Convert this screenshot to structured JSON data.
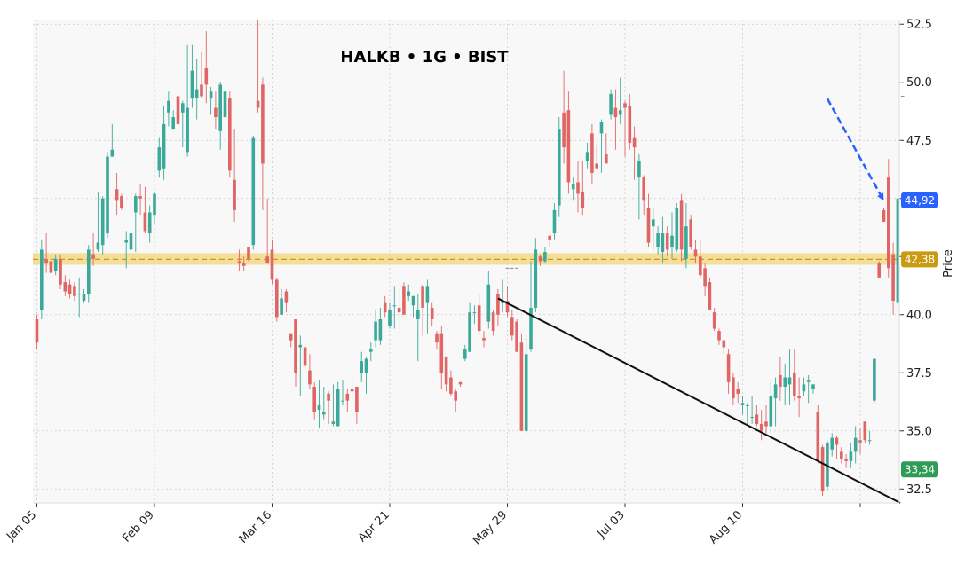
{
  "chart_data": {
    "type": "candlestick",
    "title": "HALKB • 1G • BIST",
    "ylabel": "Price",
    "xlabel": "",
    "ylim": [
      31.9,
      52.7
    ],
    "yticks": [
      32.5,
      35.0,
      37.5,
      40.0,
      42.5,
      45.0,
      47.5,
      50.0,
      52.5
    ],
    "ytick_labels": [
      "32.5",
      "35.0",
      "37.5",
      "40.0",
      "42.5",
      "45.0",
      "47.5",
      "50.0",
      "52.5"
    ],
    "xtick_labels": [
      "Jan 05",
      "Feb 09",
      "Mar 16",
      "Apr 21",
      "May 29",
      "Jul 03",
      "Aug 10",
      ""
    ],
    "xtick_index": [
      0,
      25,
      50,
      75,
      100,
      125,
      150,
      175
    ],
    "grid": true,
    "candles": [
      [
        39.8,
        38.8,
        40.0,
        38.5
      ],
      [
        40.2,
        42.8,
        43.2,
        39.8
      ],
      [
        42.4,
        42.2,
        43.5,
        41.8
      ],
      [
        42.3,
        41.8,
        42.6,
        41.6
      ],
      [
        41.9,
        42.4,
        42.6,
        41.7
      ],
      [
        42.4,
        41.3,
        42.6,
        41.1
      ],
      [
        41.4,
        41.0,
        41.7,
        40.8
      ],
      [
        41.3,
        40.9,
        41.5,
        40.7
      ],
      [
        41.2,
        40.8,
        41.4,
        40.6
      ],
      [
        40.9,
        40.9,
        41.6,
        39.9
      ],
      [
        40.6,
        40.9,
        41.1,
        40.5
      ],
      [
        40.9,
        42.8,
        43.0,
        40.5
      ],
      [
        42.6,
        42.4,
        43.5,
        42.1
      ],
      [
        42.8,
        43.1,
        45.3,
        42.7
      ],
      [
        43.0,
        45.0,
        45.1,
        42.6
      ],
      [
        43.5,
        46.8,
        47.0,
        43.3
      ],
      [
        46.8,
        47.1,
        48.2,
        46.8
      ],
      [
        45.4,
        44.9,
        46.1,
        44.3
      ],
      [
        45.1,
        44.6,
        45.2,
        44.5
      ],
      [
        43.1,
        43.2,
        43.6,
        42.0
      ],
      [
        42.8,
        43.5,
        43.8,
        41.6
      ],
      [
        44.4,
        45.1,
        45.2,
        42.7
      ],
      [
        45.1,
        45.0,
        45.6,
        44.3
      ],
      [
        44.4,
        43.6,
        45.5,
        43.5
      ],
      [
        43.5,
        44.4,
        44.7,
        43.1
      ],
      [
        44.3,
        45.2,
        45.3,
        43.9
      ],
      [
        46.2,
        47.2,
        47.6,
        45.9
      ],
      [
        46.3,
        48.2,
        49.0,
        45.8
      ],
      [
        48.7,
        49.2,
        49.6,
        48.1
      ],
      [
        48.0,
        48.5,
        48.8,
        48.2
      ],
      [
        49.4,
        48.2,
        49.7,
        48.0
      ],
      [
        48.7,
        49.1,
        49.2,
        47.2
      ],
      [
        47.0,
        48.9,
        51.6,
        46.8
      ],
      [
        49.3,
        50.5,
        51.6,
        48.9
      ],
      [
        49.3,
        49.7,
        51.0,
        48.4
      ],
      [
        49.9,
        49.4,
        51.3,
        49.3
      ],
      [
        50.6,
        49.9,
        52.2,
        49.1
      ],
      [
        49.3,
        49.6,
        49.8,
        48.6
      ],
      [
        48.9,
        48.5,
        49.6,
        48.0
      ],
      [
        47.9,
        49.9,
        50.0,
        47.1
      ],
      [
        48.5,
        49.6,
        51.1,
        48.4
      ],
      [
        49.3,
        46.2,
        49.6,
        45.9
      ],
      [
        45.8,
        44.5,
        48.0,
        44.0
      ],
      [
        42.3,
        42.2,
        42.8,
        41.9
      ],
      [
        42.2,
        42.1,
        42.5,
        41.9
      ],
      [
        42.9,
        42.4,
        42.4,
        42.3
      ],
      [
        43.0,
        47.6,
        47.7,
        42.8
      ],
      [
        49.2,
        48.9,
        52.7,
        48.7
      ],
      [
        49.9,
        46.5,
        50.2,
        44.5
      ],
      [
        42.5,
        42.2,
        45.0,
        42.2
      ],
      [
        42.8,
        41.5,
        43.2,
        41.3
      ],
      [
        41.5,
        39.9,
        41.6,
        39.7
      ],
      [
        40.0,
        40.7,
        41.1,
        40.0
      ],
      [
        41.0,
        40.5,
        41.1,
        40.1
      ],
      [
        39.2,
        38.9,
        39.2,
        38.6
      ],
      [
        39.8,
        37.5,
        39.8,
        36.9
      ],
      [
        38.6,
        38.7,
        39.1,
        36.5
      ],
      [
        38.6,
        37.8,
        38.8,
        37.6
      ],
      [
        37.6,
        37.0,
        38.3,
        36.8
      ],
      [
        36.9,
        35.8,
        37.1,
        35.5
      ],
      [
        35.9,
        36.1,
        37.2,
        35.1
      ],
      [
        35.7,
        35.8,
        36.9,
        35.5
      ],
      [
        36.6,
        36.3,
        36.7,
        35.3
      ],
      [
        35.3,
        35.4,
        37.0,
        35.2
      ],
      [
        35.2,
        36.8,
        37.1,
        35.3
      ],
      [
        36.3,
        36.3,
        37.2,
        36.1
      ],
      [
        36.6,
        36.3,
        36.8,
        35.8
      ],
      [
        36.8,
        36.7,
        37.2,
        36.3
      ],
      [
        36.9,
        35.8,
        36.9,
        35.3
      ],
      [
        37.5,
        38.0,
        38.4,
        37.1
      ],
      [
        37.5,
        38.1,
        38.2,
        36.6
      ],
      [
        38.4,
        38.5,
        38.8,
        38.0
      ],
      [
        38.9,
        39.7,
        40.2,
        38.6
      ],
      [
        38.9,
        39.8,
        40.3,
        38.7
      ],
      [
        40.5,
        40.1,
        40.8,
        39.9
      ],
      [
        39.5,
        40.2,
        40.5,
        39.4
      ],
      [
        40.4,
        40.4,
        41.2,
        39.4
      ],
      [
        40.3,
        40.1,
        41.1,
        39.2
      ],
      [
        41.2,
        40.0,
        41.4,
        40.0
      ],
      [
        40.8,
        41.0,
        41.3,
        40.6
      ],
      [
        40.4,
        40.8,
        40.8,
        39.9
      ],
      [
        39.8,
        40.2,
        40.9,
        38.0
      ],
      [
        41.2,
        40.3,
        41.3,
        39.1
      ],
      [
        40.5,
        41.2,
        41.5,
        39.2
      ],
      [
        40.3,
        39.8,
        40.5,
        39.5
      ],
      [
        39.2,
        38.8,
        39.3,
        38.5
      ],
      [
        39.2,
        37.5,
        39.5,
        36.8
      ],
      [
        38.2,
        37.0,
        38.2,
        36.7
      ],
      [
        37.3,
        36.6,
        37.6,
        36.5
      ],
      [
        36.7,
        36.3,
        36.8,
        35.8
      ],
      [
        37.1,
        37.0,
        37.1,
        36.9
      ],
      [
        38.1,
        38.5,
        38.7,
        38.0
      ],
      [
        38.4,
        40.1,
        40.5,
        38.4
      ],
      [
        40.1,
        40.1,
        40.4,
        39.6
      ],
      [
        40.4,
        39.3,
        40.9,
        39.2
      ],
      [
        39.0,
        38.9,
        39.3,
        38.6
      ],
      [
        39.7,
        41.3,
        41.9,
        39.4
      ],
      [
        40.1,
        39.3,
        40.2,
        39.1
      ],
      [
        40.9,
        40.0,
        41.1,
        39.5
      ],
      [
        40.5,
        40.6,
        41.5,
        40.1
      ],
      [
        40.6,
        40.1,
        41.2,
        39.9
      ],
      [
        39.9,
        39.1,
        40.2,
        38.9
      ],
      [
        39.7,
        38.4,
        39.8,
        38.4
      ],
      [
        38.8,
        35.0,
        39.2,
        35.0
      ],
      [
        35.0,
        38.3,
        39.1,
        34.9
      ],
      [
        38.5,
        40.3,
        42.3,
        38.4
      ],
      [
        40.3,
        42.8,
        43.3,
        40.1
      ],
      [
        42.5,
        42.3,
        42.6,
        42.1
      ],
      [
        42.3,
        42.7,
        42.9,
        42.2
      ],
      [
        43.4,
        43.2,
        43.4,
        42.9
      ],
      [
        43.5,
        44.5,
        44.8,
        43.2
      ],
      [
        44.7,
        48.0,
        48.5,
        44.2
      ],
      [
        48.7,
        47.2,
        50.5,
        46.5
      ],
      [
        48.8,
        45.7,
        49.6,
        45.2
      ],
      [
        45.4,
        45.6,
        45.9,
        44.9
      ],
      [
        45.7,
        45.2,
        46.6,
        44.4
      ],
      [
        45.3,
        44.6,
        46.6,
        44.3
      ],
      [
        46.6,
        47.0,
        47.4,
        46.3
      ],
      [
        47.8,
        46.1,
        48.2,
        45.6
      ],
      [
        46.5,
        46.3,
        47.3,
        46.3
      ],
      [
        47.8,
        48.3,
        48.4,
        46.1
      ],
      [
        46.9,
        46.5,
        47.8,
        46.6
      ],
      [
        48.6,
        49.5,
        49.7,
        48.4
      ],
      [
        48.9,
        48.5,
        49.7,
        47.1
      ],
      [
        48.6,
        48.8,
        50.2,
        48.2
      ],
      [
        49.1,
        48.9,
        49.2,
        46.8
      ],
      [
        49.0,
        47.4,
        49.5,
        47.1
      ],
      [
        47.6,
        47.2,
        48.1,
        45.8
      ],
      [
        45.9,
        46.6,
        46.9,
        44.1
      ],
      [
        45.9,
        44.9,
        46.0,
        44.3
      ],
      [
        44.6,
        43.1,
        45.2,
        42.9
      ],
      [
        43.8,
        44.1,
        44.6,
        42.8
      ],
      [
        42.9,
        43.5,
        43.8,
        42.6
      ],
      [
        42.7,
        43.5,
        44.2,
        42.2
      ],
      [
        43.5,
        42.8,
        43.8,
        42.5
      ],
      [
        42.9,
        43.4,
        44.4,
        42.4
      ],
      [
        42.8,
        44.6,
        44.8,
        42.7
      ],
      [
        44.9,
        42.8,
        45.2,
        42.3
      ],
      [
        42.4,
        43.8,
        44.8,
        42.0
      ],
      [
        44.1,
        42.9,
        44.3,
        42.8
      ],
      [
        42.8,
        42.5,
        43.2,
        42.2
      ],
      [
        42.5,
        41.7,
        43.2,
        41.6
      ],
      [
        42.0,
        41.2,
        42.2,
        40.8
      ],
      [
        41.4,
        40.2,
        41.6,
        40.2
      ],
      [
        40.1,
        39.4,
        40.3,
        39.3
      ],
      [
        39.3,
        38.9,
        39.4,
        38.7
      ],
      [
        38.9,
        38.6,
        38.9,
        38.3
      ],
      [
        38.3,
        37.1,
        38.5,
        36.6
      ],
      [
        37.3,
        36.4,
        37.5,
        36.1
      ],
      [
        36.8,
        36.6,
        37.1,
        36.2
      ],
      [
        36.1,
        36.2,
        36.5,
        35.7
      ],
      [
        36.1,
        36.1,
        36.2,
        35.3
      ],
      [
        35.6,
        35.6,
        36.5,
        35.3
      ],
      [
        35.7,
        35.3,
        36.1,
        35.2
      ],
      [
        35.3,
        35.0,
        35.9,
        34.6
      ],
      [
        35.4,
        35.2,
        36.1,
        34.9
      ],
      [
        35.2,
        36.5,
        37.2,
        34.9
      ],
      [
        36.4,
        37.0,
        37.3,
        35.2
      ],
      [
        37.4,
        36.9,
        38.2,
        36.3
      ],
      [
        36.9,
        37.3,
        37.9,
        36.1
      ],
      [
        37.0,
        37.3,
        38.5,
        36.1
      ],
      [
        37.5,
        36.5,
        38.5,
        36.3
      ],
      [
        36.5,
        36.4,
        37.3,
        35.6
      ],
      [
        36.7,
        37.0,
        37.3,
        36.5
      ],
      [
        37.1,
        37.2,
        37.4,
        36.2
      ],
      [
        36.8,
        37.0,
        37.0,
        36.6
      ],
      [
        35.8,
        33.7,
        36.1,
        33.6
      ],
      [
        34.3,
        32.4,
        34.4,
        32.2
      ],
      [
        32.6,
        34.5,
        34.6,
        32.4
      ],
      [
        34.2,
        34.7,
        34.9,
        33.9
      ],
      [
        34.7,
        34.4,
        34.8,
        33.8
      ],
      [
        34.1,
        33.8,
        34.3,
        33.6
      ],
      [
        33.8,
        33.7,
        34.0,
        33.4
      ],
      [
        33.7,
        34.1,
        34.5,
        33.4
      ],
      [
        34.1,
        34.7,
        35.2,
        33.6
      ],
      [
        34.6,
        34.5,
        35.1,
        34.0
      ],
      [
        35.4,
        34.6,
        35.4,
        34.5
      ],
      [
        34.6,
        34.6,
        35.0,
        34.4
      ],
      [
        36.3,
        38.1,
        38.1,
        36.2
      ]
    ],
    "gap": 169,
    "late_candles": [
      {
        "index": 179,
        "open": 42.2,
        "close": 41.6,
        "high": 42.3,
        "low": 41.6
      },
      {
        "index": 180,
        "open": 44.5,
        "close": 44.0,
        "high": 44.6,
        "low": 44.0
      },
      {
        "index": 181,
        "open": 45.9,
        "close": 42.0,
        "high": 46.7,
        "low": 41.6
      },
      {
        "index": 182,
        "open": 42.6,
        "close": 40.6,
        "high": 43.1,
        "low": 40.0
      },
      {
        "index": 183,
        "open": 40.5,
        "close": 45.0,
        "high": 45.2,
        "low": 40.2
      }
    ],
    "flat_markers": [
      {
        "index": 100,
        "value": 42.0
      },
      {
        "index": 101,
        "value": 42.0
      },
      {
        "index": 102,
        "value": 42.0
      },
      {
        "index": 184,
        "value": 49.4
      }
    ],
    "horizontal_level": {
      "value": 42.38,
      "label": "42,38",
      "band": [
        42.15,
        42.65
      ]
    },
    "trendline": {
      "from": {
        "index": 98,
        "value": 40.7
      },
      "to": {
        "index": 183.5,
        "value": 31.9
      }
    },
    "projection_arrow": {
      "from": {
        "index": 168,
        "value": 49.3
      },
      "to": {
        "index": 180,
        "value": 44.9
      }
    },
    "price_tags": [
      {
        "value": 44.92,
        "label": "44,92",
        "color": "#2962ff"
      },
      {
        "value": 42.38,
        "label": "42,38",
        "color": "#c99a12"
      },
      {
        "value": 33.34,
        "label": "33,34",
        "color": "#2e9b57"
      }
    ]
  },
  "colors": {
    "up": "#3aa99a",
    "down": "#e06666",
    "grid": "#cccccc",
    "plot_bg": "#f8f8f8",
    "level_line": "#c99a12",
    "level_band": "#f5d98a",
    "trendline": "#111111",
    "arrow": "#2962ff"
  }
}
